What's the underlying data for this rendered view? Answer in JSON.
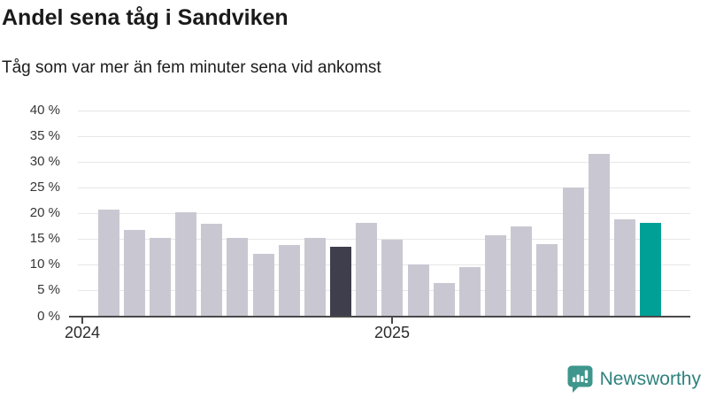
{
  "header": {
    "title": "Andel sena tåg i Sandviken",
    "subtitle": "Tåg som var mer än fem minuter sena vid ankomst"
  },
  "chart_data": {
    "type": "bar",
    "title": "Andel sena tåg i Sandviken",
    "subtitle": "Tåg som var mer än fem minuter sena vid ankomst",
    "unit": "% av tåg mer än fem minuter sena",
    "ylim": [
      0,
      40
    ],
    "grid": true,
    "legend": "none",
    "y_ticks": [
      {
        "value": 40,
        "label": "40 %"
      },
      {
        "value": 35,
        "label": "35 %"
      },
      {
        "value": 30,
        "label": "30 %"
      },
      {
        "value": 25,
        "label": "25 %"
      },
      {
        "value": 20,
        "label": "20 %"
      },
      {
        "value": 15,
        "label": "15 %"
      },
      {
        "value": 10,
        "label": "10 %"
      },
      {
        "value": 5,
        "label": "5 %"
      },
      {
        "value": 0,
        "label": "0 %"
      }
    ],
    "x_ticks": [
      {
        "label": "2024",
        "month_index": 0
      },
      {
        "label": "2025",
        "month_index": 12
      }
    ],
    "bars": [
      {
        "value": 20.7,
        "color_role": "default"
      },
      {
        "value": 16.7,
        "color_role": "default"
      },
      {
        "value": 15.2,
        "color_role": "default"
      },
      {
        "value": 20.1,
        "color_role": "default"
      },
      {
        "value": 17.9,
        "color_role": "default"
      },
      {
        "value": 15.1,
        "color_role": "default"
      },
      {
        "value": 12.1,
        "color_role": "default"
      },
      {
        "value": 13.8,
        "color_role": "default"
      },
      {
        "value": 15.2,
        "color_role": "default"
      },
      {
        "value": 13.4,
        "color_role": "dark"
      },
      {
        "value": 18.1,
        "color_role": "default"
      },
      {
        "value": 14.8,
        "color_role": "default"
      },
      {
        "value": 10.0,
        "color_role": "default"
      },
      {
        "value": 6.3,
        "color_role": "default"
      },
      {
        "value": 9.4,
        "color_role": "default"
      },
      {
        "value": 15.7,
        "color_role": "default"
      },
      {
        "value": 17.3,
        "color_role": "default"
      },
      {
        "value": 13.9,
        "color_role": "default"
      },
      {
        "value": 25.0,
        "color_role": "default"
      },
      {
        "value": 31.5,
        "color_role": "default"
      },
      {
        "value": 18.7,
        "color_role": "default"
      },
      {
        "value": 18.0,
        "color_role": "accent"
      }
    ],
    "colors": {
      "default": "#c9c8d2",
      "dark": "#3f3e4d",
      "accent": "#00a096",
      "axis_line": "#494949",
      "gridline": "#e7e7e7",
      "tick_text": "#363636"
    }
  },
  "footer": {
    "brand_name": "Newsworthy",
    "brand_text_color": "#2e827d",
    "logo_color": "#3e968c",
    "logo_icon": "bar-chart-speech-bubble"
  }
}
